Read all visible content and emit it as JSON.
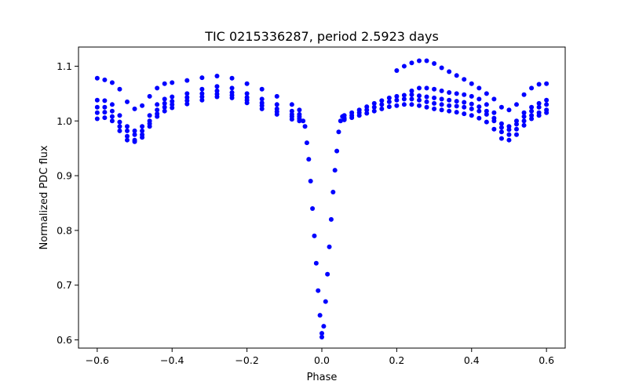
{
  "chart_data": {
    "type": "scatter",
    "title": "TIC 0215336287, period 2.5923 days",
    "xlabel": "Phase",
    "ylabel": "Normalized PDC flux",
    "xlim": [
      -0.65,
      0.65
    ],
    "ylim": [
      0.585,
      1.135
    ],
    "xticks": [
      -0.6,
      -0.4,
      -0.2,
      0.0,
      0.2,
      0.4,
      0.6
    ],
    "xtick_labels": [
      "−0.6",
      "−0.4",
      "−0.2",
      "0.0",
      "0.2",
      "0.4",
      "0.6"
    ],
    "yticks": [
      0.6,
      0.7,
      0.8,
      0.9,
      1.0,
      1.1
    ],
    "ytick_labels": [
      "0.6",
      "0.7",
      "0.8",
      "0.9",
      "1.0",
      "1.1"
    ],
    "grid": false,
    "marker_color": "#0000ff",
    "series": [
      {
        "points": [
          [
            -0.6,
            1.078
          ],
          [
            -0.58,
            1.075
          ],
          [
            -0.56,
            1.07
          ],
          [
            -0.54,
            1.058
          ],
          [
            -0.52,
            1.035
          ],
          [
            -0.5,
            1.022
          ],
          [
            -0.48,
            1.028
          ],
          [
            -0.46,
            1.045
          ],
          [
            -0.44,
            1.06
          ],
          [
            -0.42,
            1.068
          ],
          [
            -0.4,
            1.07
          ],
          [
            -0.36,
            1.074
          ],
          [
            -0.32,
            1.079
          ],
          [
            -0.28,
            1.082
          ],
          [
            -0.24,
            1.078
          ],
          [
            -0.2,
            1.068
          ],
          [
            -0.16,
            1.058
          ],
          [
            -0.12,
            1.045
          ],
          [
            -0.08,
            1.03
          ],
          [
            -0.06,
            1.02
          ],
          [
            -0.6,
            1.038
          ],
          [
            -0.58,
            1.037
          ],
          [
            -0.56,
            1.03
          ],
          [
            -0.54,
            1.01
          ],
          [
            -0.52,
            0.99
          ],
          [
            -0.5,
            0.982
          ],
          [
            -0.48,
            0.99
          ],
          [
            -0.46,
            1.01
          ],
          [
            -0.44,
            1.03
          ],
          [
            -0.42,
            1.04
          ],
          [
            -0.4,
            1.044
          ],
          [
            -0.36,
            1.05
          ],
          [
            -0.32,
            1.058
          ],
          [
            -0.28,
            1.063
          ],
          [
            -0.24,
            1.06
          ],
          [
            -0.2,
            1.05
          ],
          [
            -0.16,
            1.04
          ],
          [
            -0.12,
            1.03
          ],
          [
            -0.08,
            1.018
          ],
          [
            -0.06,
            1.012
          ],
          [
            -0.6,
            1.025
          ],
          [
            -0.58,
            1.025
          ],
          [
            -0.56,
            1.018
          ],
          [
            -0.54,
            0.998
          ],
          [
            -0.52,
            0.982
          ],
          [
            -0.5,
            0.975
          ],
          [
            -0.48,
            0.982
          ],
          [
            -0.46,
            1.0
          ],
          [
            -0.44,
            1.02
          ],
          [
            -0.42,
            1.032
          ],
          [
            -0.4,
            1.036
          ],
          [
            -0.36,
            1.043
          ],
          [
            -0.32,
            1.05
          ],
          [
            -0.28,
            1.055
          ],
          [
            -0.24,
            1.052
          ],
          [
            -0.2,
            1.043
          ],
          [
            -0.16,
            1.033
          ],
          [
            -0.12,
            1.022
          ],
          [
            -0.08,
            1.012
          ],
          [
            -0.06,
            1.008
          ],
          [
            -0.6,
            1.015
          ],
          [
            -0.58,
            1.016
          ],
          [
            -0.56,
            1.008
          ],
          [
            -0.54,
            0.99
          ],
          [
            -0.52,
            0.972
          ],
          [
            -0.5,
            0.965
          ],
          [
            -0.48,
            0.975
          ],
          [
            -0.46,
            0.995
          ],
          [
            -0.44,
            1.013
          ],
          [
            -0.42,
            1.025
          ],
          [
            -0.4,
            1.03
          ],
          [
            -0.36,
            1.037
          ],
          [
            -0.32,
            1.044
          ],
          [
            -0.28,
            1.049
          ],
          [
            -0.24,
            1.047
          ],
          [
            -0.2,
            1.038
          ],
          [
            -0.16,
            1.028
          ],
          [
            -0.12,
            1.017
          ],
          [
            -0.08,
            1.008
          ],
          [
            -0.06,
            1.004
          ],
          [
            -0.6,
            1.004
          ],
          [
            -0.58,
            1.006
          ],
          [
            -0.56,
            1.0
          ],
          [
            -0.54,
            0.982
          ],
          [
            -0.52,
            0.965
          ],
          [
            -0.5,
            0.962
          ],
          [
            -0.48,
            0.97
          ],
          [
            -0.46,
            0.99
          ],
          [
            -0.44,
            1.008
          ],
          [
            -0.42,
            1.018
          ],
          [
            -0.4,
            1.024
          ],
          [
            -0.36,
            1.031
          ],
          [
            -0.32,
            1.038
          ],
          [
            -0.28,
            1.044
          ],
          [
            -0.24,
            1.042
          ],
          [
            -0.2,
            1.033
          ],
          [
            -0.16,
            1.022
          ],
          [
            -0.12,
            1.012
          ],
          [
            -0.08,
            1.003
          ],
          [
            -0.06,
            1.0
          ],
          [
            -0.05,
            1.0
          ],
          [
            -0.045,
            0.99
          ],
          [
            -0.04,
            0.96
          ],
          [
            -0.035,
            0.93
          ],
          [
            -0.03,
            0.89
          ],
          [
            -0.025,
            0.84
          ],
          [
            -0.02,
            0.79
          ],
          [
            -0.015,
            0.74
          ],
          [
            -0.01,
            0.69
          ],
          [
            -0.005,
            0.645
          ],
          [
            0.0,
            0.612
          ],
          [
            0.0,
            0.605
          ],
          [
            0.005,
            0.625
          ],
          [
            0.01,
            0.67
          ],
          [
            0.015,
            0.72
          ],
          [
            0.02,
            0.77
          ],
          [
            0.025,
            0.82
          ],
          [
            0.03,
            0.87
          ],
          [
            0.035,
            0.91
          ],
          [
            0.04,
            0.945
          ],
          [
            0.045,
            0.98
          ],
          [
            0.05,
            1.0
          ],
          [
            0.055,
            1.008
          ],
          [
            0.06,
            1.005
          ],
          [
            0.08,
            1.01
          ],
          [
            0.1,
            1.015
          ],
          [
            0.12,
            1.02
          ],
          [
            0.14,
            1.025
          ],
          [
            0.16,
            1.03
          ],
          [
            0.18,
            1.035
          ],
          [
            0.2,
            1.038
          ],
          [
            0.22,
            1.04
          ],
          [
            0.24,
            1.04
          ],
          [
            0.26,
            1.038
          ],
          [
            0.28,
            1.035
          ],
          [
            0.3,
            1.032
          ],
          [
            0.32,
            1.03
          ],
          [
            0.34,
            1.028
          ],
          [
            0.36,
            1.027
          ],
          [
            0.38,
            1.025
          ],
          [
            0.4,
            1.022
          ],
          [
            0.42,
            1.018
          ],
          [
            0.44,
            1.012
          ],
          [
            0.46,
            1.0
          ],
          [
            0.48,
            0.98
          ],
          [
            0.5,
            0.975
          ],
          [
            0.52,
            0.985
          ],
          [
            0.54,
            1.0
          ],
          [
            0.56,
            1.01
          ],
          [
            0.58,
            1.015
          ],
          [
            0.6,
            1.02
          ],
          [
            0.06,
            1.01
          ],
          [
            0.08,
            1.015
          ],
          [
            0.1,
            1.02
          ],
          [
            0.12,
            1.026
          ],
          [
            0.14,
            1.032
          ],
          [
            0.16,
            1.037
          ],
          [
            0.18,
            1.042
          ],
          [
            0.2,
            1.045
          ],
          [
            0.22,
            1.047
          ],
          [
            0.24,
            1.048
          ],
          [
            0.26,
            1.046
          ],
          [
            0.28,
            1.044
          ],
          [
            0.3,
            1.042
          ],
          [
            0.32,
            1.04
          ],
          [
            0.34,
            1.038
          ],
          [
            0.36,
            1.036
          ],
          [
            0.38,
            1.034
          ],
          [
            0.4,
            1.031
          ],
          [
            0.42,
            1.026
          ],
          [
            0.44,
            1.018
          ],
          [
            0.46,
            1.005
          ],
          [
            0.48,
            0.988
          ],
          [
            0.5,
            0.984
          ],
          [
            0.52,
            0.994
          ],
          [
            0.54,
            1.008
          ],
          [
            0.56,
            1.018
          ],
          [
            0.58,
            1.025
          ],
          [
            0.6,
            1.03
          ],
          [
            0.06,
            1.002
          ],
          [
            0.08,
            1.006
          ],
          [
            0.1,
            1.01
          ],
          [
            0.12,
            1.014
          ],
          [
            0.14,
            1.018
          ],
          [
            0.16,
            1.022
          ],
          [
            0.18,
            1.026
          ],
          [
            0.2,
            1.028
          ],
          [
            0.22,
            1.03
          ],
          [
            0.24,
            1.03
          ],
          [
            0.26,
            1.028
          ],
          [
            0.28,
            1.025
          ],
          [
            0.3,
            1.022
          ],
          [
            0.32,
            1.02
          ],
          [
            0.34,
            1.018
          ],
          [
            0.36,
            1.016
          ],
          [
            0.38,
            1.013
          ],
          [
            0.4,
            1.01
          ],
          [
            0.42,
            1.005
          ],
          [
            0.44,
            0.998
          ],
          [
            0.46,
            0.985
          ],
          [
            0.48,
            0.968
          ],
          [
            0.5,
            0.965
          ],
          [
            0.52,
            0.975
          ],
          [
            0.54,
            0.992
          ],
          [
            0.56,
            1.004
          ],
          [
            0.58,
            1.01
          ],
          [
            0.6,
            1.015
          ],
          [
            0.2,
            1.092
          ],
          [
            0.22,
            1.1
          ],
          [
            0.24,
            1.106
          ],
          [
            0.26,
            1.11
          ],
          [
            0.28,
            1.11
          ],
          [
            0.3,
            1.105
          ],
          [
            0.32,
            1.097
          ],
          [
            0.34,
            1.09
          ],
          [
            0.36,
            1.083
          ],
          [
            0.38,
            1.076
          ],
          [
            0.4,
            1.068
          ],
          [
            0.42,
            1.06
          ],
          [
            0.44,
            1.05
          ],
          [
            0.46,
            1.04
          ],
          [
            0.48,
            1.025
          ],
          [
            0.5,
            1.02
          ],
          [
            0.52,
            1.03
          ],
          [
            0.54,
            1.048
          ],
          [
            0.56,
            1.06
          ],
          [
            0.58,
            1.067
          ],
          [
            0.6,
            1.068
          ],
          [
            0.24,
            1.055
          ],
          [
            0.26,
            1.06
          ],
          [
            0.28,
            1.06
          ],
          [
            0.3,
            1.058
          ],
          [
            0.32,
            1.055
          ],
          [
            0.34,
            1.052
          ],
          [
            0.36,
            1.05
          ],
          [
            0.38,
            1.048
          ],
          [
            0.4,
            1.045
          ],
          [
            0.42,
            1.04
          ],
          [
            0.44,
            1.03
          ],
          [
            0.46,
            1.015
          ],
          [
            0.48,
            0.995
          ],
          [
            0.5,
            0.99
          ],
          [
            0.52,
            1.0
          ],
          [
            0.54,
            1.015
          ],
          [
            0.56,
            1.025
          ],
          [
            0.58,
            1.032
          ],
          [
            0.6,
            1.038
          ]
        ]
      }
    ]
  }
}
